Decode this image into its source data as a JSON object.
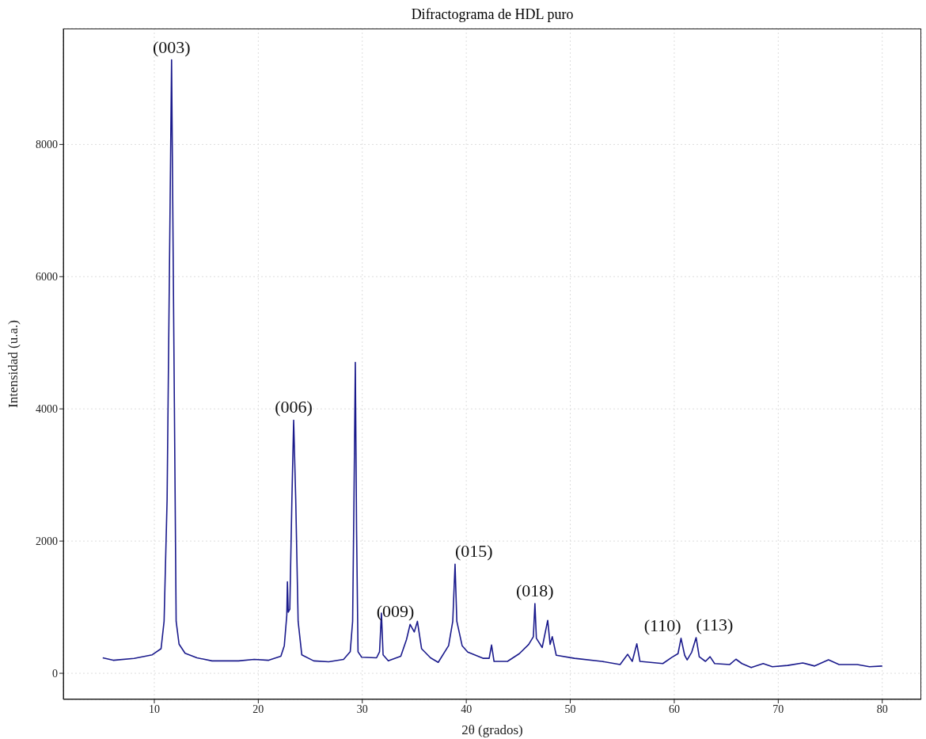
{
  "chart_data": {
    "type": "line",
    "title": "Difractograma de HDL puro",
    "xlabel": "2θ (grados)",
    "ylabel": "Intensidad (u.a.)",
    "xlim": [
      1.25,
      83.75
    ],
    "ylim": [
      -395,
      9754
    ],
    "xticks": [
      10,
      20,
      30,
      40,
      50,
      60,
      70,
      80
    ],
    "yticks": [
      0,
      2000,
      4000,
      6000,
      8000
    ],
    "grid": true,
    "line_style": "solid",
    "marker": "none",
    "series": [
      {
        "color": "#1a1a8c",
        "x": [
          5.04,
          6.05,
          8.06,
          9.8,
          10.65,
          10.94,
          11.23,
          11.66,
          12.1,
          12.38,
          12.96,
          14.1,
          15.55,
          18.1,
          19.6,
          21.0,
          22.17,
          22.5,
          22.74,
          22.8,
          22.88,
          23.03,
          23.23,
          23.4,
          23.6,
          23.83,
          24.18,
          25.33,
          26.77,
          28.2,
          28.84,
          29.07,
          29.2,
          29.33,
          29.45,
          29.59,
          29.94,
          31.37,
          31.66,
          31.84,
          32.0,
          32.5,
          33.7,
          34.25,
          34.6,
          35.0,
          35.3,
          35.7,
          36.56,
          37.3,
          38.3,
          38.7,
          38.92,
          39.09,
          39.6,
          40.14,
          41.6,
          42.2,
          42.43,
          42.67,
          43.96,
          45.1,
          46.0,
          46.45,
          46.6,
          46.74,
          47.3,
          47.83,
          48.06,
          48.27,
          48.65,
          50.4,
          53.03,
          54.79,
          55.52,
          55.96,
          56.4,
          56.7,
          58.9,
          59.77,
          60.36,
          60.65,
          61.0,
          61.24,
          61.68,
          62.1,
          62.4,
          63.0,
          63.44,
          63.88,
          65.34,
          65.93,
          66.5,
          67.4,
          68.55,
          69.43,
          70.9,
          72.35,
          73.5,
          74.83,
          75.85,
          77.6,
          78.77,
          80.0
        ],
        "values": [
          234,
          197,
          225,
          280,
          372,
          786,
          2625,
          9280,
          786,
          441,
          303,
          234,
          188,
          188,
          211,
          197,
          257,
          418,
          878,
          1383,
          924,
          970,
          2625,
          3829,
          2625,
          786,
          280,
          188,
          174,
          211,
          326,
          786,
          2625,
          4702,
          2165,
          326,
          243,
          234,
          326,
          910,
          280,
          188,
          257,
          510,
          740,
          625,
          786,
          372,
          234,
          165,
          418,
          786,
          1650,
          786,
          418,
          320,
          227,
          227,
          428,
          180,
          180,
          297,
          437,
          554,
          1054,
          530,
          390,
          801,
          437,
          554,
          273,
          227,
          180,
          133,
          287,
          180,
          446,
          180,
          147,
          241,
          297,
          530,
          273,
          203,
          320,
          540,
          250,
          180,
          250,
          147,
          133,
          213,
          147,
          86,
          147,
          100,
          119,
          157,
          110,
          203,
          133,
          133,
          100,
          110
        ]
      }
    ],
    "annotations": [
      {
        "text": "(003)",
        "x": 11.66,
        "y": 9280
      },
      {
        "text": "(006)",
        "x": 23.4,
        "y": 3829
      },
      {
        "text": "(009)",
        "x": 35.0,
        "y": 740
      },
      {
        "text": "(015)",
        "x": 38.92,
        "y": 1650
      },
      {
        "text": "(018)",
        "x": 46.6,
        "y": 1054
      },
      {
        "text": "(110)",
        "x": 60.65,
        "y": 530
      },
      {
        "text": "(113)",
        "x": 62.1,
        "y": 540
      }
    ]
  }
}
